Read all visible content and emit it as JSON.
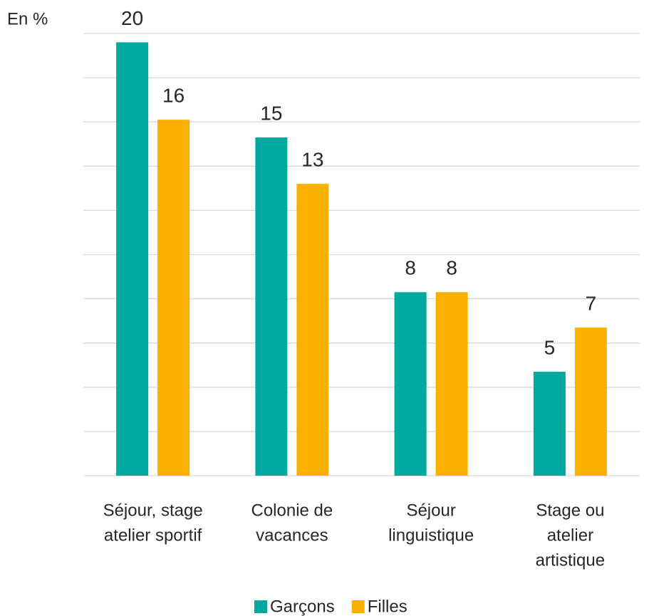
{
  "chart_data": {
    "type": "bar",
    "y_label": "En %",
    "categories": [
      [
        "Séjour, stage",
        "atelier sportif"
      ],
      [
        "Colonie de",
        "vacances"
      ],
      [
        "Séjour",
        "linguistique"
      ],
      [
        "Stage ou",
        "atelier",
        "artistique"
      ]
    ],
    "series": [
      {
        "name": "Garçons",
        "color": "#00a99d",
        "values": [
          19.6,
          15.3,
          8.3,
          4.7
        ],
        "value_labels": [
          "20",
          "15",
          "8",
          "5"
        ]
      },
      {
        "name": "Filles",
        "color": "#f9b000",
        "values": [
          16.1,
          13.2,
          8.3,
          6.7
        ],
        "value_labels": [
          "16",
          "13",
          "8",
          "7"
        ]
      }
    ],
    "ylim": [
      0,
      20
    ],
    "yticks": [
      0,
      2,
      4,
      6,
      8,
      10,
      12,
      14,
      16,
      18,
      20
    ],
    "grid": true,
    "legend": "bottom"
  }
}
